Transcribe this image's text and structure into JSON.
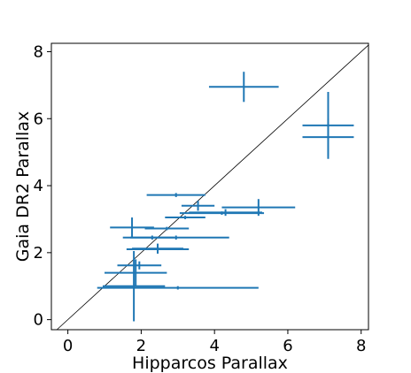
{
  "chart_data": {
    "type": "scatter",
    "title": "",
    "xlabel": "Hipparcos Parallax",
    "ylabel": "Gaia DR2 Parallax",
    "xlim": [
      -0.45,
      8.2
    ],
    "ylim": [
      -0.3,
      8.25
    ],
    "xticks": [
      0,
      2,
      4,
      6,
      8
    ],
    "yticks": [
      0,
      2,
      4,
      6,
      8
    ],
    "xtick_labels": [
      "0",
      "2",
      "4",
      "6",
      "8"
    ],
    "ytick_labels": [
      "0",
      "2",
      "4",
      "6",
      "8"
    ],
    "reference_line": "y = x",
    "grid": false,
    "color": "#1f77b4",
    "points": [
      {
        "x": 4.8,
        "xerr": 0.95,
        "y": 6.95,
        "yerr": 0.45
      },
      {
        "x": 7.1,
        "xerr": 0.7,
        "y": 5.8,
        "yerr": 1.0
      },
      {
        "x": 7.1,
        "xerr": 0.7,
        "y": 5.45,
        "yerr": 0.55
      },
      {
        "x": 2.95,
        "xerr": 0.8,
        "y": 3.72,
        "yerr": 0.06
      },
      {
        "x": 3.55,
        "xerr": 0.45,
        "y": 3.4,
        "yerr": 0.15
      },
      {
        "x": 5.2,
        "xerr": 1.0,
        "y": 3.35,
        "yerr": 0.25
      },
      {
        "x": 4.3,
        "xerr": 1.0,
        "y": 3.2,
        "yerr": 0.1
      },
      {
        "x": 4.2,
        "xerr": 1.15,
        "y": 3.18,
        "yerr": 0.05
      },
      {
        "x": 3.2,
        "xerr": 0.55,
        "y": 3.05,
        "yerr": 0.05
      },
      {
        "x": 1.75,
        "xerr": 0.6,
        "y": 2.75,
        "yerr": 0.3
      },
      {
        "x": 2.7,
        "xerr": 0.6,
        "y": 2.72,
        "yerr": 0.05
      },
      {
        "x": 2.3,
        "xerr": 0.6,
        "y": 2.45,
        "yerr": 0.06
      },
      {
        "x": 2.95,
        "xerr": 1.45,
        "y": 2.45,
        "yerr": 0.06
      },
      {
        "x": 2.45,
        "xerr": 0.7,
        "y": 2.12,
        "yerr": 0.15
      },
      {
        "x": 2.45,
        "xerr": 0.85,
        "y": 2.1,
        "yerr": 0.06
      },
      {
        "x": 1.95,
        "xerr": 0.6,
        "y": 1.62,
        "yerr": 0.12
      },
      {
        "x": 1.85,
        "xerr": 0.85,
        "y": 1.4,
        "yerr": 0.4
      },
      {
        "x": 1.8,
        "xerr": 0.85,
        "y": 1.0,
        "yerr": 1.05
      },
      {
        "x": 3.0,
        "xerr": 2.2,
        "y": 0.95,
        "yerr": 0.05
      }
    ]
  }
}
